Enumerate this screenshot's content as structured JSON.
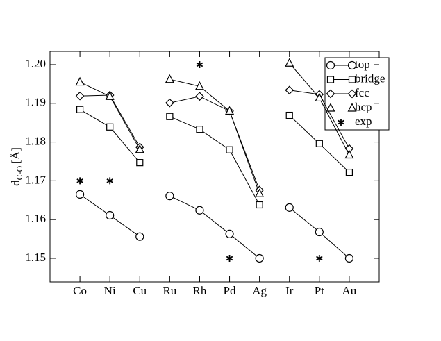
{
  "chart_data": {
    "type": "line",
    "y_label": {
      "main": "d",
      "sub": "C-O",
      "unit": "[Å]"
    },
    "categories": [
      "Co",
      "Ni",
      "Cu",
      "Ru",
      "Rh",
      "Pd",
      "Ag",
      "Ir",
      "Pt",
      "Au"
    ],
    "line_groups": [
      3,
      4,
      3
    ],
    "series": [
      {
        "name": "top",
        "color": "#000000",
        "marker": "circle",
        "line": true,
        "values": [
          1.1665,
          1.1611,
          1.1556,
          1.1661,
          1.1624,
          1.1563,
          1.15,
          1.1631,
          1.1568,
          1.15
        ]
      },
      {
        "name": "bridge",
        "color": "#000000",
        "marker": "square",
        "line": true,
        "values": [
          1.1884,
          1.1839,
          1.1747,
          1.1866,
          1.1833,
          1.178,
          1.1638,
          1.1869,
          1.1796,
          1.1722
        ]
      },
      {
        "name": "fcc",
        "color": "#000000",
        "marker": "diamond",
        "line": true,
        "values": [
          1.1919,
          1.1921,
          1.1787,
          1.1901,
          1.1918,
          1.188,
          1.1676,
          1.1934,
          1.1923,
          1.1783
        ]
      },
      {
        "name": "hcp",
        "color": "#000000",
        "marker": "triangle",
        "line": true,
        "values": [
          1.1955,
          1.1918,
          1.1781,
          1.1962,
          1.1944,
          1.188,
          1.1667,
          1.2004,
          1.1914,
          1.1767
        ]
      },
      {
        "name": "exp",
        "color": "#000000",
        "marker": "asterisk",
        "line": false,
        "values": [
          1.17,
          1.17,
          null,
          null,
          1.2,
          1.15,
          null,
          null,
          1.15,
          null
        ]
      }
    ],
    "ylim": [
      1.1439,
      1.2034
    ],
    "yticks": [
      1.15,
      1.16,
      1.17,
      1.18,
      1.19,
      {
        "value": 1.2,
        "label": "1.20"
      }
    ],
    "legend": "top-right"
  }
}
